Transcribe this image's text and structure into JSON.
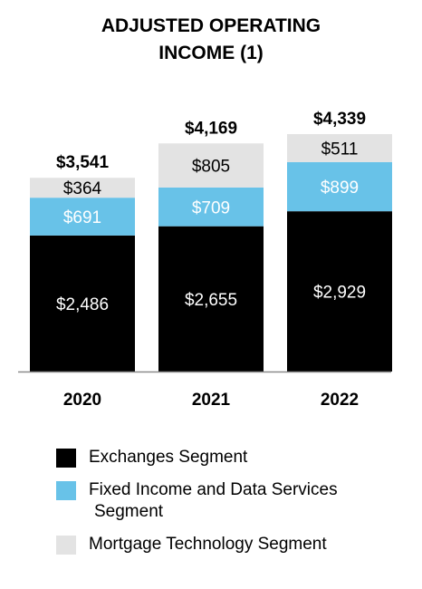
{
  "title_line1": "ADJUSTED OPERATING",
  "title_line2": "INCOME (1)",
  "chart_data": {
    "type": "bar",
    "stacked": true,
    "categories": [
      "2020",
      "2021",
      "2022"
    ],
    "series": [
      {
        "name": "Exchanges Segment",
        "values": [
          2486,
          2655,
          2929
        ],
        "labels": [
          "$2,486",
          "$2,655",
          "$2,929"
        ],
        "color": "#000000",
        "label_color": "#ffffff"
      },
      {
        "name": "Fixed Income and Data Services Segment",
        "values": [
          691,
          709,
          899
        ],
        "labels": [
          "$691",
          "$709",
          "$899"
        ],
        "color": "#68c2e8",
        "label_color": "#ffffff"
      },
      {
        "name": "Mortgage Technology Segment",
        "values": [
          364,
          805,
          511
        ],
        "labels": [
          "$364",
          "$805",
          "$511"
        ],
        "color": "#e3e3e3",
        "label_color": "#000000"
      }
    ],
    "totals": [
      3541,
      4169,
      4339
    ],
    "total_labels": [
      "$3,541",
      "$4,169",
      "$4,339"
    ],
    "ylim": [
      0,
      4339
    ],
    "grid": false,
    "legend_position": "bottom"
  },
  "legend": [
    {
      "line1": "Exchanges Segment",
      "line2": "",
      "color": "#000000"
    },
    {
      "line1": "Fixed Income and Data Services",
      "line2": "Segment",
      "color": "#68c2e8"
    },
    {
      "line1": "Mortgage Technology Segment",
      "line2": "",
      "color": "#e3e3e3"
    }
  ]
}
